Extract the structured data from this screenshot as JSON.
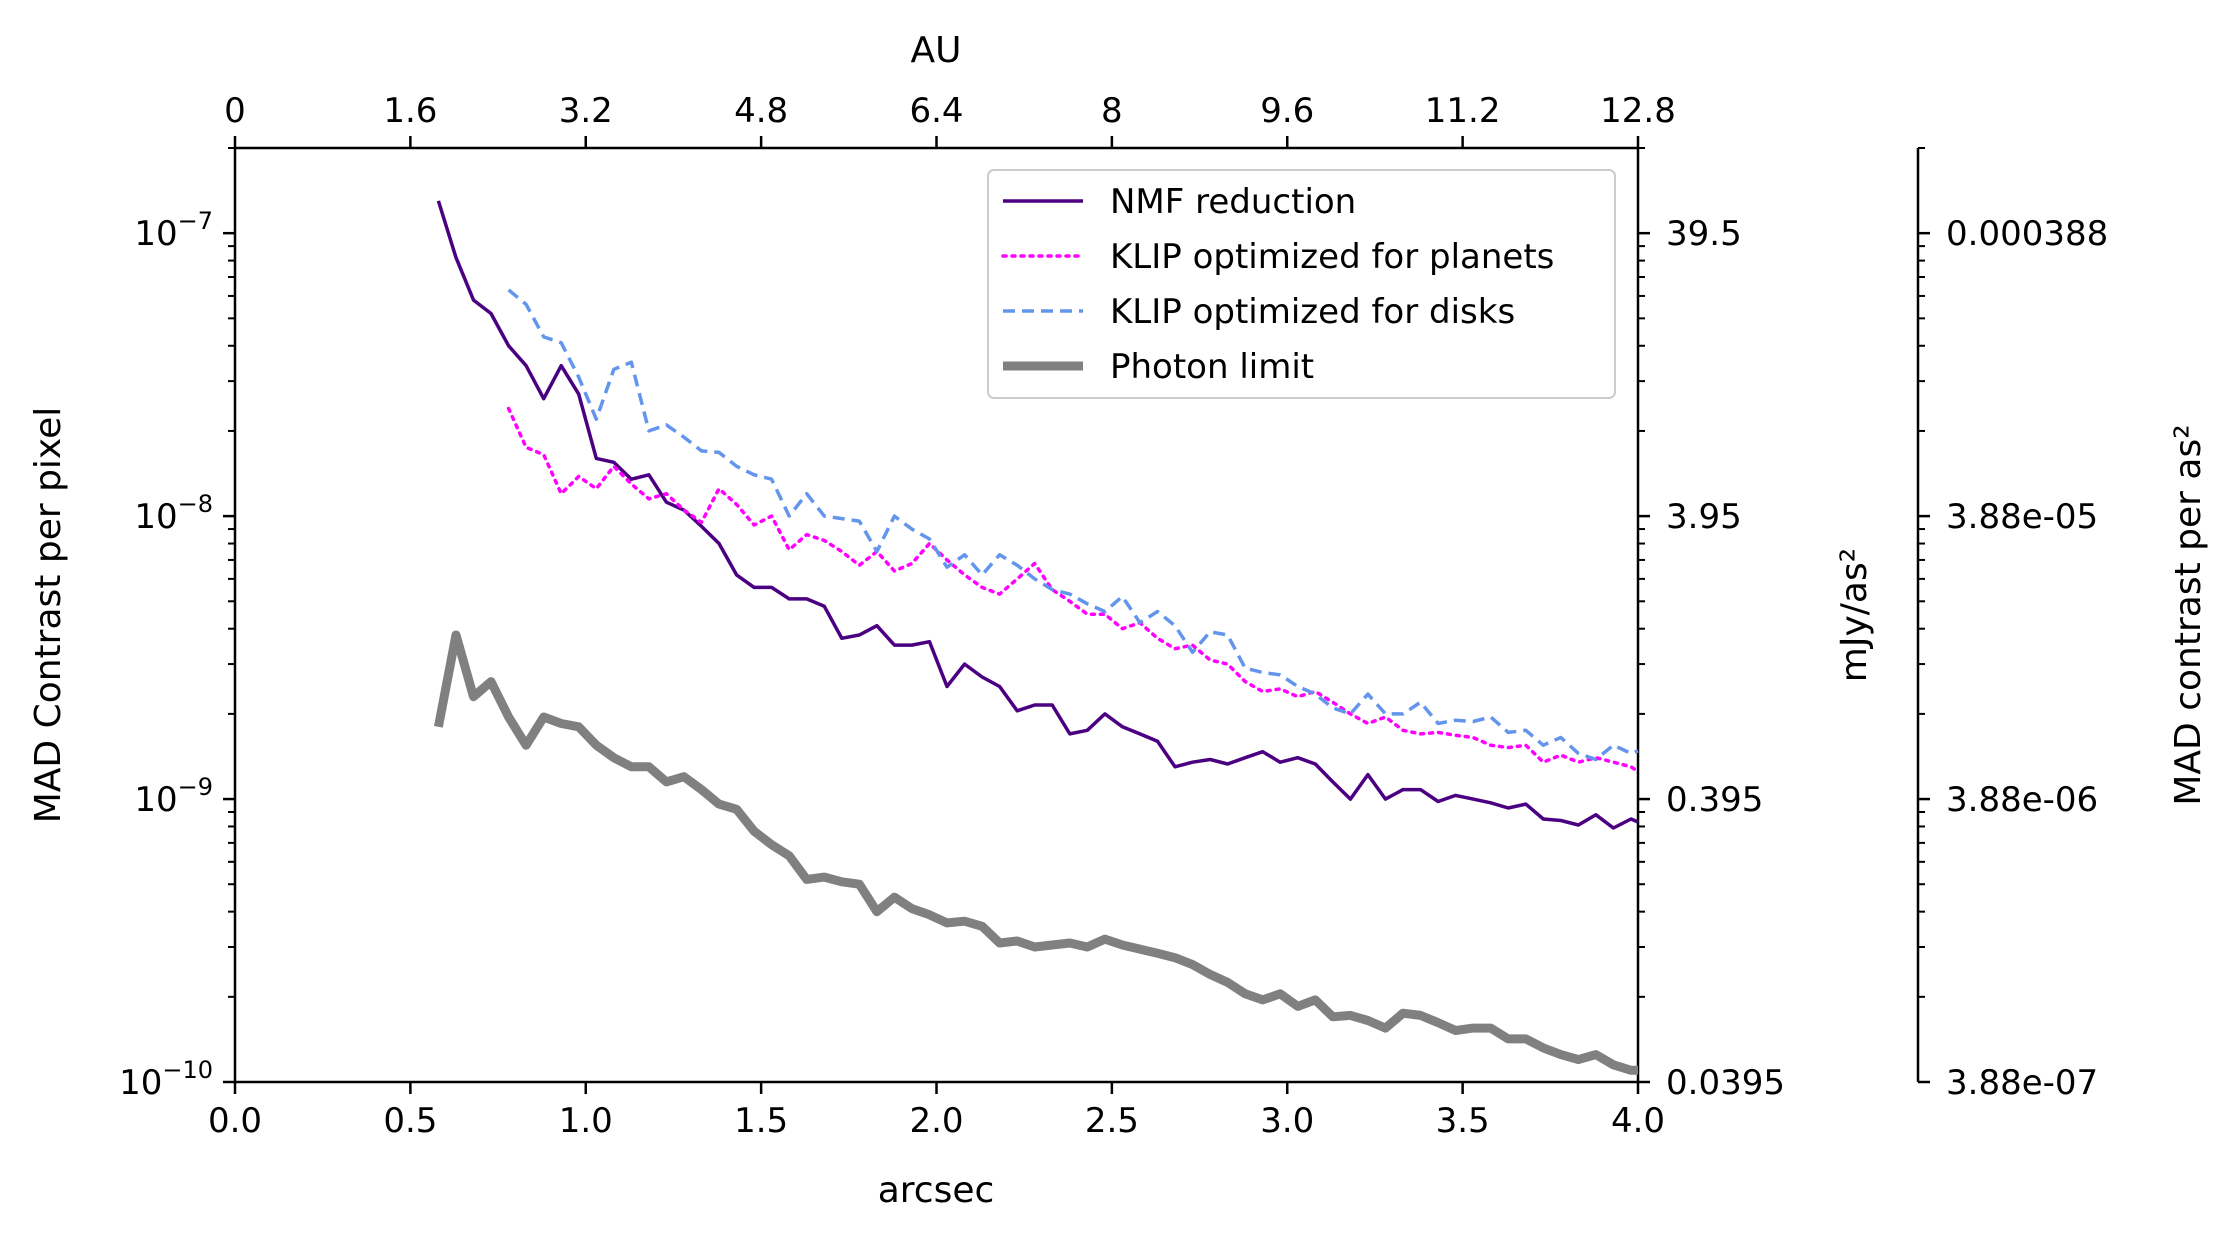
{
  "chart_data": {
    "type": "line",
    "xlabel": "arcsec",
    "x2label": "AU",
    "ylabel": "MAD Contrast per pixel",
    "y2label": "mJy/as²",
    "y3label": "MAD contrast per as²",
    "xlim": [
      0.0,
      4.0
    ],
    "ylim": [
      1e-10,
      2e-07
    ],
    "yscale": "log",
    "grid": false,
    "legend_position": "upper-right",
    "x_ticks": [
      "0.0",
      "0.5",
      "1.0",
      "1.5",
      "2.0",
      "2.5",
      "3.0",
      "3.5",
      "4.0"
    ],
    "x2_ticks": [
      "0",
      "1.6",
      "3.2",
      "4.8",
      "6.4",
      "8",
      "9.6",
      "11.2",
      "12.8"
    ],
    "y_ticks": [
      {
        "value": 1e-07,
        "base": "10",
        "exp": "−7"
      },
      {
        "value": 1e-08,
        "base": "10",
        "exp": "−8"
      },
      {
        "value": 1e-09,
        "base": "10",
        "exp": "−9"
      },
      {
        "value": 1e-10,
        "base": "10",
        "exp": "−10"
      }
    ],
    "y2_ticks": [
      "39.5",
      "3.95",
      "0.395",
      "0.0395"
    ],
    "y3_ticks": [
      "0.000388",
      "3.88e-05",
      "3.88e-06",
      "3.88e-07"
    ],
    "series": [
      {
        "name": "NMF reduction",
        "color": "#4b0082",
        "style": "solid",
        "x": [
          0.58,
          0.63,
          0.68,
          0.73,
          0.78,
          0.83,
          0.88,
          0.93,
          0.98,
          1.03,
          1.08,
          1.13,
          1.18,
          1.23,
          1.28,
          1.33,
          1.38,
          1.43,
          1.48,
          1.53,
          1.58,
          1.63,
          1.68,
          1.73,
          1.78,
          1.83,
          1.88,
          1.93,
          1.98,
          2.03,
          2.08,
          2.13,
          2.18,
          2.23,
          2.28,
          2.33,
          2.38,
          2.43,
          2.48,
          2.53,
          2.58,
          2.63,
          2.68,
          2.73,
          2.78,
          2.83,
          2.88,
          2.93,
          2.98,
          3.03,
          3.08,
          3.13,
          3.18,
          3.23,
          3.28,
          3.33,
          3.38,
          3.43,
          3.48,
          3.53,
          3.58,
          3.63,
          3.68,
          3.73,
          3.78,
          3.83,
          3.88,
          3.93,
          3.98,
          4.0
        ],
        "y": [
          1.3e-07,
          8.2e-08,
          5.8e-08,
          5.2e-08,
          4e-08,
          3.4e-08,
          2.6e-08,
          3.4e-08,
          2.7e-08,
          1.6e-08,
          1.55e-08,
          1.35e-08,
          1.4e-08,
          1.12e-08,
          1.05e-08,
          9.2e-09,
          8e-09,
          6.2e-09,
          5.6e-09,
          5.6e-09,
          5.1e-09,
          5.1e-09,
          4.8e-09,
          3.7e-09,
          3.8e-09,
          4.1e-09,
          3.5e-09,
          3.5e-09,
          3.6e-09,
          2.5e-09,
          3e-09,
          2.7e-09,
          2.5e-09,
          2.05e-09,
          2.15e-09,
          2.15e-09,
          1.7e-09,
          1.75e-09,
          2e-09,
          1.8e-09,
          1.7e-09,
          1.6e-09,
          1.3e-09,
          1.35e-09,
          1.38e-09,
          1.33e-09,
          1.4e-09,
          1.47e-09,
          1.35e-09,
          1.4e-09,
          1.33e-09,
          1.15e-09,
          1e-09,
          1.22e-09,
          1e-09,
          1.08e-09,
          1.08e-09,
          9.8e-10,
          1.03e-09,
          1e-09,
          9.7e-10,
          9.3e-10,
          9.6e-10,
          8.5e-10,
          8.4e-10,
          8.1e-10,
          8.8e-10,
          7.9e-10,
          8.5e-10,
          8.3e-10
        ]
      },
      {
        "name": "KLIP optimized for planets",
        "color": "#ff00ff",
        "style": "dotted",
        "x": [
          0.78,
          0.83,
          0.88,
          0.93,
          0.98,
          1.03,
          1.08,
          1.13,
          1.18,
          1.23,
          1.28,
          1.33,
          1.38,
          1.43,
          1.48,
          1.53,
          1.58,
          1.63,
          1.68,
          1.73,
          1.78,
          1.83,
          1.88,
          1.93,
          1.98,
          2.03,
          2.08,
          2.13,
          2.18,
          2.23,
          2.28,
          2.33,
          2.38,
          2.43,
          2.48,
          2.53,
          2.58,
          2.63,
          2.68,
          2.73,
          2.78,
          2.83,
          2.88,
          2.93,
          2.98,
          3.03,
          3.08,
          3.13,
          3.18,
          3.23,
          3.28,
          3.33,
          3.38,
          3.43,
          3.48,
          3.53,
          3.58,
          3.63,
          3.68,
          3.73,
          3.78,
          3.83,
          3.88,
          3.93,
          3.98,
          4.0
        ],
        "y": [
          2.4e-08,
          1.75e-08,
          1.65e-08,
          1.2e-08,
          1.38e-08,
          1.25e-08,
          1.5e-08,
          1.3e-08,
          1.15e-08,
          1.2e-08,
          1.05e-08,
          9.5e-09,
          1.25e-08,
          1.1e-08,
          9.3e-09,
          1e-08,
          7.6e-09,
          8.6e-09,
          8.2e-09,
          7.5e-09,
          6.7e-09,
          7.5e-09,
          6.4e-09,
          6.8e-09,
          8e-09,
          7e-09,
          6.2e-09,
          5.6e-09,
          5.3e-09,
          6e-09,
          6.8e-09,
          5.5e-09,
          5e-09,
          4.5e-09,
          4.5e-09,
          4e-09,
          4.2e-09,
          3.7e-09,
          3.4e-09,
          3.5e-09,
          3.1e-09,
          3e-09,
          2.6e-09,
          2.4e-09,
          2.45e-09,
          2.3e-09,
          2.4e-09,
          2.2e-09,
          2e-09,
          1.85e-09,
          1.95e-09,
          1.75e-09,
          1.7e-09,
          1.72e-09,
          1.68e-09,
          1.65e-09,
          1.55e-09,
          1.52e-09,
          1.55e-09,
          1.35e-09,
          1.43e-09,
          1.35e-09,
          1.4e-09,
          1.35e-09,
          1.3e-09,
          1.25e-09
        ]
      },
      {
        "name": "KLIP optimized for disks",
        "color": "#6495ed",
        "style": "dashed",
        "x": [
          0.78,
          0.83,
          0.88,
          0.93,
          0.98,
          1.03,
          1.08,
          1.13,
          1.18,
          1.23,
          1.28,
          1.33,
          1.38,
          1.43,
          1.48,
          1.53,
          1.58,
          1.63,
          1.68,
          1.73,
          1.78,
          1.83,
          1.88,
          1.93,
          1.98,
          2.03,
          2.08,
          2.13,
          2.18,
          2.23,
          2.28,
          2.33,
          2.38,
          2.43,
          2.48,
          2.53,
          2.58,
          2.63,
          2.68,
          2.73,
          2.78,
          2.83,
          2.88,
          2.93,
          2.98,
          3.03,
          3.08,
          3.13,
          3.18,
          3.23,
          3.28,
          3.33,
          3.38,
          3.43,
          3.48,
          3.53,
          3.58,
          3.63,
          3.68,
          3.73,
          3.78,
          3.83,
          3.88,
          3.93,
          3.98,
          4.0
        ],
        "y": [
          6.3e-08,
          5.6e-08,
          4.3e-08,
          4.1e-08,
          3.1e-08,
          2.2e-08,
          3.3e-08,
          3.5e-08,
          2e-08,
          2.1e-08,
          1.9e-08,
          1.7e-08,
          1.68e-08,
          1.5e-08,
          1.4e-08,
          1.35e-08,
          1e-08,
          1.2e-08,
          1e-08,
          9.8e-09,
          9.6e-09,
          7.5e-09,
          1e-08,
          9e-09,
          8.3e-09,
          6.6e-09,
          7.3e-09,
          6.2e-09,
          7.3e-09,
          6.7e-09,
          6e-09,
          5.5e-09,
          5.3e-09,
          4.9e-09,
          4.6e-09,
          5.2e-09,
          4.2e-09,
          4.6e-09,
          4.1e-09,
          3.3e-09,
          3.9e-09,
          3.8e-09,
          2.9e-09,
          2.8e-09,
          2.75e-09,
          2.5e-09,
          2.35e-09,
          2.1e-09,
          2e-09,
          2.35e-09,
          2e-09,
          2e-09,
          2.2e-09,
          1.85e-09,
          1.9e-09,
          1.88e-09,
          1.95e-09,
          1.72e-09,
          1.75e-09,
          1.55e-09,
          1.65e-09,
          1.45e-09,
          1.38e-09,
          1.55e-09,
          1.45e-09,
          1.48e-09
        ]
      },
      {
        "name": "Photon limit",
        "color": "#808080",
        "style": "thick",
        "x": [
          0.58,
          0.63,
          0.68,
          0.73,
          0.78,
          0.83,
          0.88,
          0.93,
          0.98,
          1.03,
          1.08,
          1.13,
          1.18,
          1.23,
          1.28,
          1.33,
          1.38,
          1.43,
          1.48,
          1.53,
          1.58,
          1.63,
          1.68,
          1.73,
          1.78,
          1.83,
          1.88,
          1.93,
          1.98,
          2.03,
          2.08,
          2.13,
          2.18,
          2.23,
          2.28,
          2.33,
          2.38,
          2.43,
          2.48,
          2.53,
          2.58,
          2.63,
          2.68,
          2.73,
          2.78,
          2.83,
          2.88,
          2.93,
          2.98,
          3.03,
          3.08,
          3.13,
          3.18,
          3.23,
          3.28,
          3.33,
          3.38,
          3.43,
          3.48,
          3.53,
          3.58,
          3.63,
          3.68,
          3.73,
          3.78,
          3.83,
          3.88,
          3.93,
          3.98,
          4.0
        ],
        "y": [
          1.8e-09,
          3.8e-09,
          2.3e-09,
          2.6e-09,
          1.95e-09,
          1.55e-09,
          1.95e-09,
          1.85e-09,
          1.8e-09,
          1.55e-09,
          1.4e-09,
          1.3e-09,
          1.3e-09,
          1.15e-09,
          1.2e-09,
          1.08e-09,
          9.6e-10,
          9.2e-10,
          7.7e-10,
          6.9e-10,
          6.3e-10,
          5.2e-10,
          5.3e-10,
          5.1e-10,
          5e-10,
          4e-10,
          4.5e-10,
          4.1e-10,
          3.9e-10,
          3.65e-10,
          3.7e-10,
          3.55e-10,
          3.1e-10,
          3.15e-10,
          3e-10,
          3.05e-10,
          3.1e-10,
          3e-10,
          3.2e-10,
          3.05e-10,
          2.95e-10,
          2.85e-10,
          2.75e-10,
          2.6e-10,
          2.4e-10,
          2.25e-10,
          2.05e-10,
          1.95e-10,
          2.05e-10,
          1.85e-10,
          1.95e-10,
          1.7e-10,
          1.72e-10,
          1.65e-10,
          1.55e-10,
          1.75e-10,
          1.72e-10,
          1.62e-10,
          1.52e-10,
          1.55e-10,
          1.55e-10,
          1.42e-10,
          1.42e-10,
          1.32e-10,
          1.25e-10,
          1.2e-10,
          1.25e-10,
          1.15e-10,
          1.1e-10,
          1.1e-10
        ]
      }
    ]
  }
}
